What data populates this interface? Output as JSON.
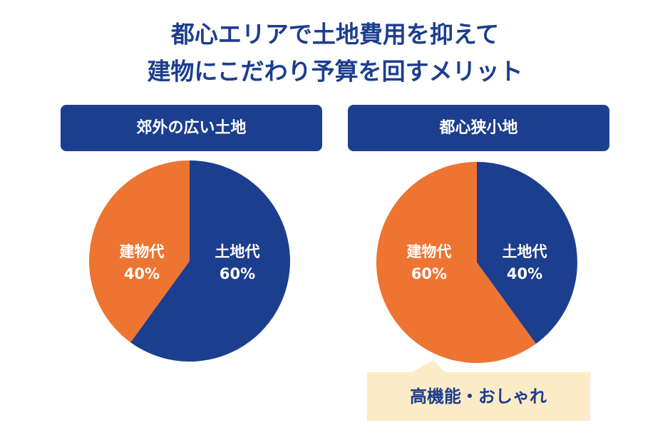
{
  "title_lines": [
    "都心エリアで土地費用を抑えて",
    "建物にこだわり予算を回すメリット"
  ],
  "chart_data": [
    {
      "type": "pie",
      "title": "郊外の広い土地",
      "categories": [
        "土地代",
        "建物代"
      ],
      "values": [
        60,
        40
      ],
      "value_labels": [
        "60%",
        "40%"
      ],
      "colors": [
        "#1c3e8f",
        "#ee7431"
      ]
    },
    {
      "type": "pie",
      "title": "都心狭小地",
      "categories": [
        "土地代",
        "建物代"
      ],
      "values": [
        40,
        60
      ],
      "value_labels": [
        "40%",
        "60%"
      ],
      "colors": [
        "#1c3e8f",
        "#ee7431"
      ]
    }
  ],
  "callout": "高機能・おしゃれ"
}
